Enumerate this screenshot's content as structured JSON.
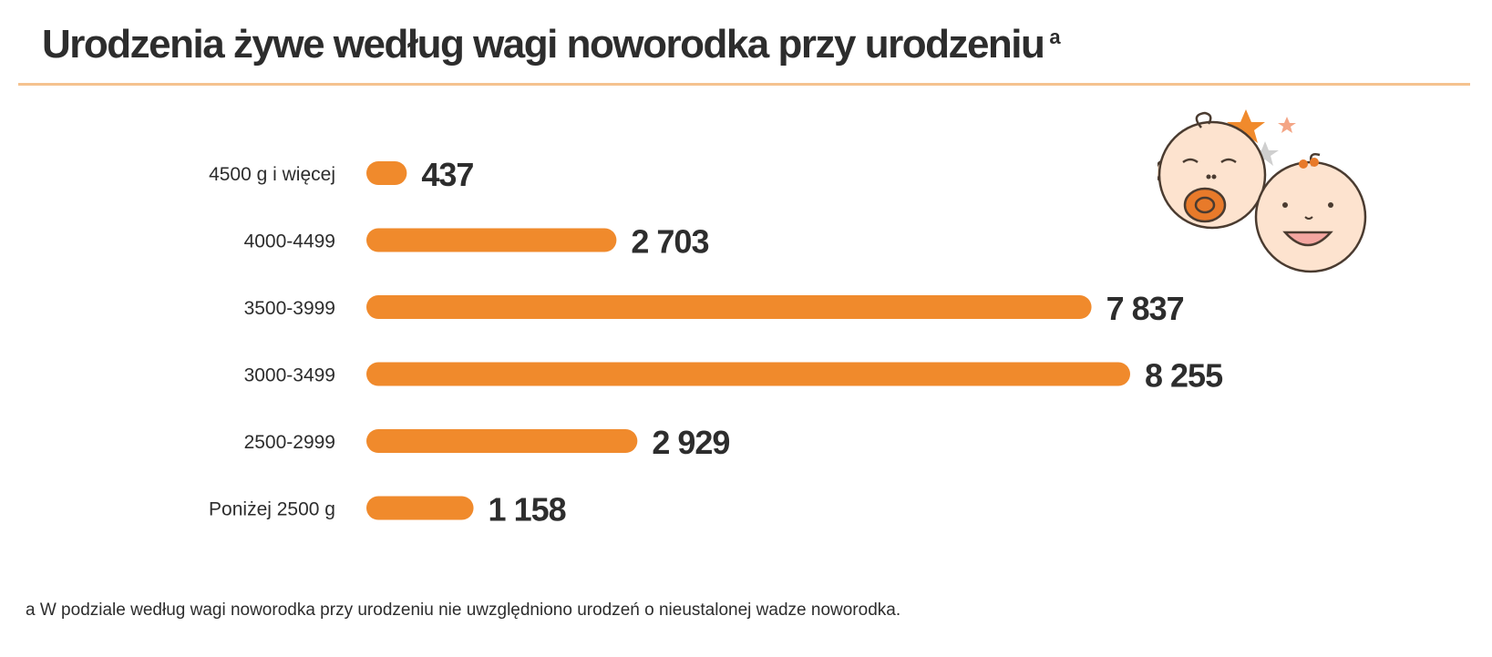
{
  "title": "Urodzenia żywe według wagi noworodka przy urodzeniu",
  "title_footnote_marker": "a",
  "footnote": "a W podziale według wagi noworodka przy urodzeniu nie uwzględniono urodzeń o nieustalonej wadze noworodka.",
  "colors": {
    "bar": "#f08a2c",
    "text": "#2d2d2d",
    "rule": "#f5c28f"
  },
  "illustration": {
    "name": "babies-illustration-icon"
  },
  "chart_data": {
    "type": "bar",
    "orientation": "horizontal",
    "categories": [
      "4500 g i więcej",
      "4000-4499",
      "3500-3999",
      "3000-3499",
      "2500-2999",
      "Poniżej 2500 g"
    ],
    "values": [
      437,
      2703,
      7837,
      8255,
      2929,
      1158
    ],
    "value_labels": [
      "437",
      "2 703",
      "7 837",
      "8 255",
      "2 929",
      "1 158"
    ],
    "title": "Urodzenia żywe według wagi noworodka przy urodzeniu",
    "xlabel": "",
    "ylabel": "",
    "xlim": [
      0,
      8255
    ],
    "grid": false,
    "legend": "none"
  }
}
